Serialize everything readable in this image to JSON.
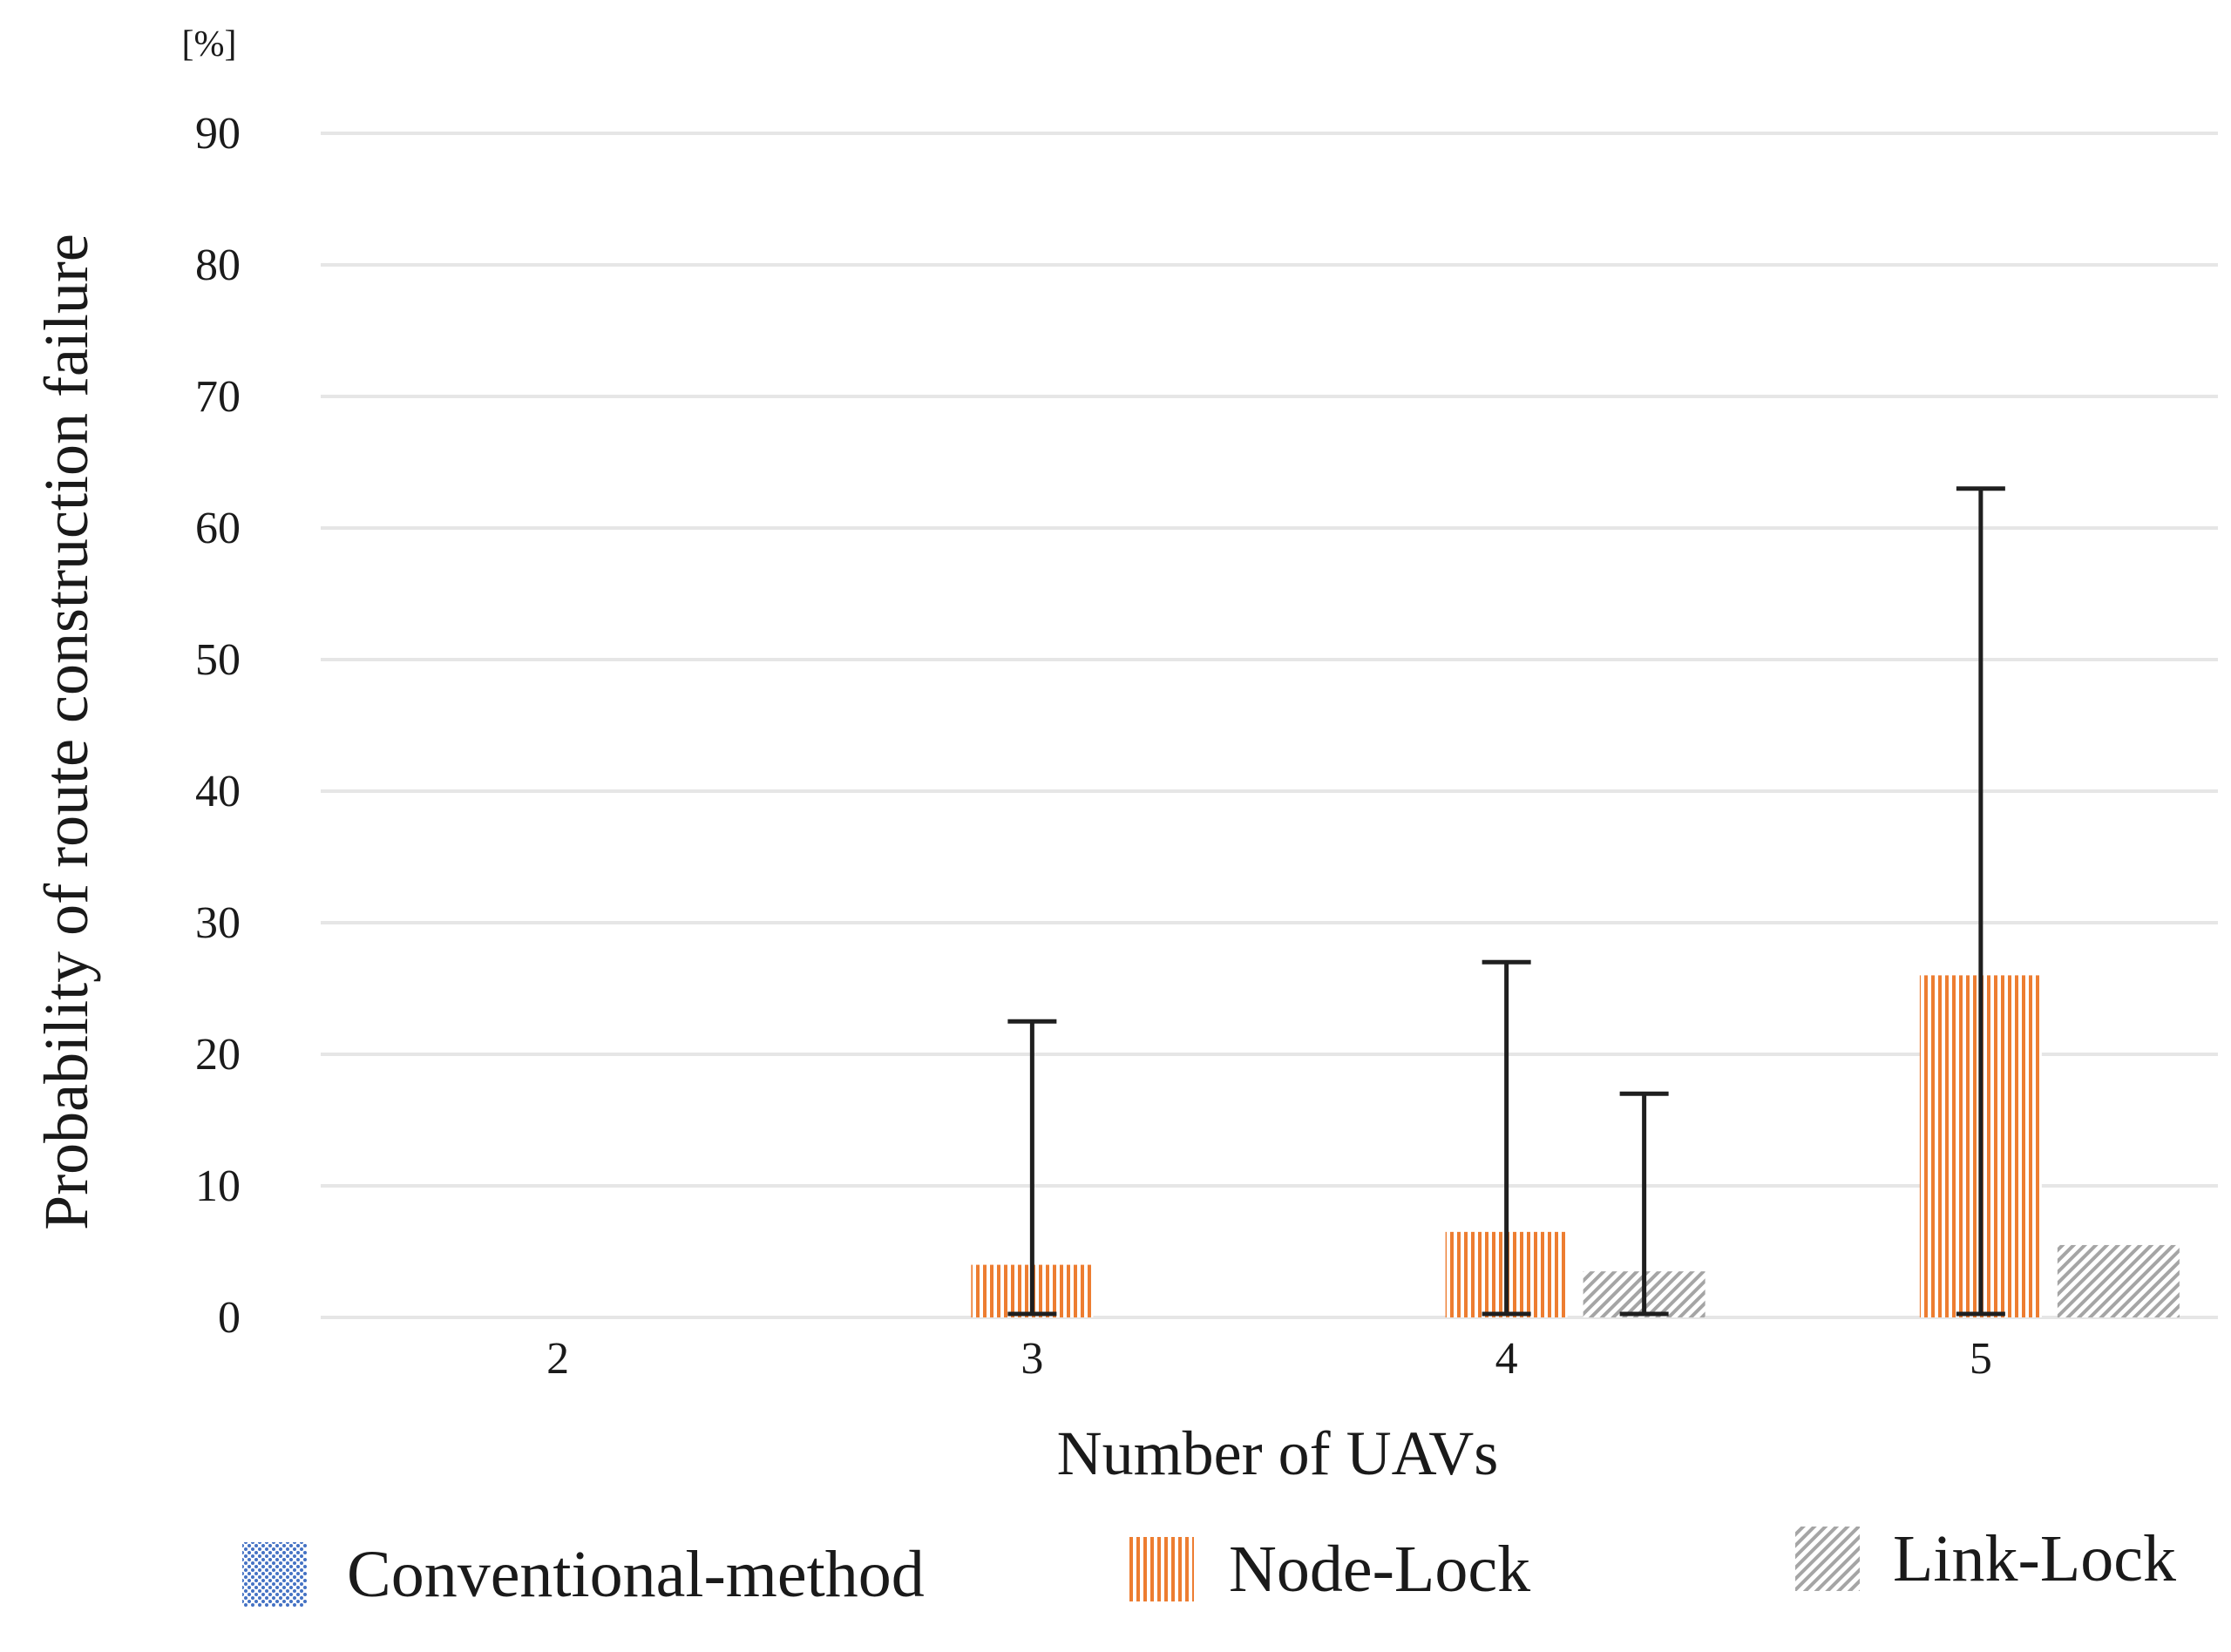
{
  "chart_data": {
    "type": "bar",
    "title": "",
    "xlabel": "Number of UAVs",
    "ylabel": "Probability of route construction failure",
    "y_unit": "[%]",
    "categories": [
      "2",
      "3",
      "4",
      "5"
    ],
    "yticks": [
      "0",
      "10",
      "20",
      "30",
      "40",
      "50",
      "60",
      "70",
      "80",
      "90"
    ],
    "ylim": [
      0,
      90
    ],
    "grid": true,
    "legend_position": "bottom",
    "series": [
      {
        "name": "Conventional-method",
        "color": "#4472c4",
        "pattern": "dots",
        "values": [
          0,
          0,
          0,
          0
        ],
        "error_low": [
          0,
          0,
          0,
          0
        ],
        "error_high": [
          0,
          0,
          0,
          0
        ]
      },
      {
        "name": "Node-Lock",
        "color": "#ed7d31",
        "pattern": "vertical-lines",
        "values": [
          0,
          4,
          6.5,
          26
        ],
        "error_low": [
          0,
          0,
          0,
          0
        ],
        "error_high": [
          0,
          22.5,
          27,
          63
        ]
      },
      {
        "name": "Link-Lock",
        "color": "#a5a5a5",
        "pattern": "diagonal-lines",
        "values": [
          0,
          0,
          3.5,
          5.5
        ],
        "error_low": [
          0,
          0,
          0,
          0
        ],
        "error_high": [
          0,
          0,
          17,
          0
        ]
      }
    ]
  }
}
